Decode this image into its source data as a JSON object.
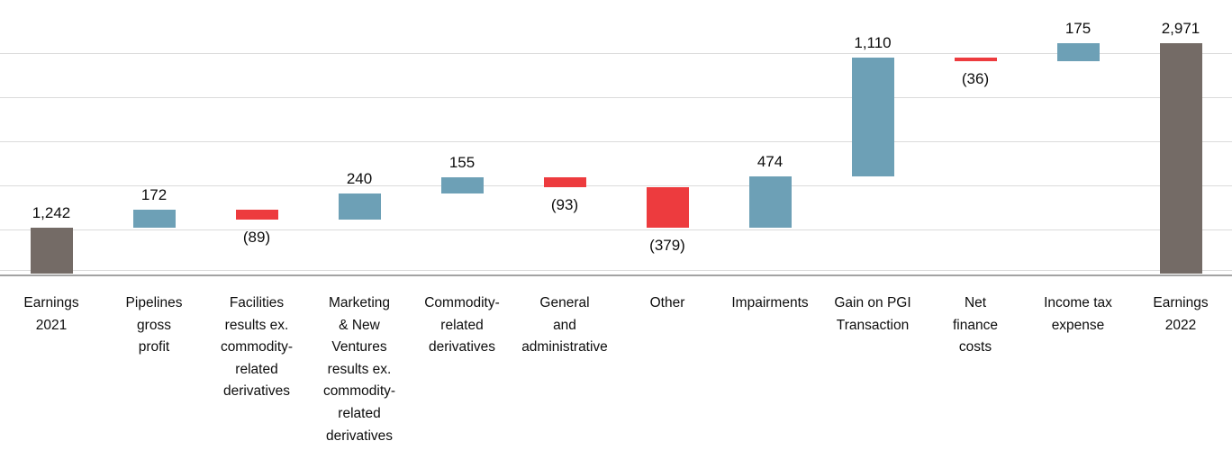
{
  "chart_data": {
    "type": "bar",
    "subtype": "waterfall",
    "title": "",
    "xlabel": "",
    "ylabel": "",
    "start_value": 1242,
    "end_value": 2971,
    "legend": null,
    "grid": true,
    "ylim_approx": [
      810,
      3380
    ],
    "colors": {
      "increase": "#6da0b6",
      "decrease": "#ed3b3e",
      "total": "#746b66",
      "gridline": "#dbdbdb",
      "axis_line": "#a3a3a3",
      "label_text": "#0d0d0d"
    },
    "items": [
      {
        "label": "Earnings 2021",
        "label_lines": [
          "Earnings",
          "2021"
        ],
        "value": 1242,
        "display": "1,242",
        "role": "total"
      },
      {
        "label": "Pipelines gross profit",
        "label_lines": [
          "Pipelines",
          "gross",
          "profit"
        ],
        "value": 172,
        "display": "172",
        "role": "increase"
      },
      {
        "label": "Facilities results ex. commodity-related derivatives",
        "label_lines": [
          "Facilities",
          "results ex.",
          "commodity-",
          "related",
          "derivatives"
        ],
        "value": -89,
        "display": "(89)",
        "role": "decrease"
      },
      {
        "label": "Marketing & New Ventures results ex. commodity-related derivatives",
        "label_lines": [
          "Marketing",
          "& New",
          "Ventures",
          "results ex.",
          "commodity-",
          "related",
          "derivatives"
        ],
        "value": 240,
        "display": "240",
        "role": "increase"
      },
      {
        "label": "Commodity-related derivatives",
        "label_lines": [
          "Commodity-",
          "related",
          "derivatives"
        ],
        "value": 155,
        "display": "155",
        "role": "increase"
      },
      {
        "label": "General and administrative",
        "label_lines": [
          "General",
          "and",
          "administrative"
        ],
        "value": -93,
        "display": "(93)",
        "role": "decrease"
      },
      {
        "label": "Other",
        "label_lines": [
          "Other"
        ],
        "value": -379,
        "display": "(379)",
        "role": "decrease"
      },
      {
        "label": "Impairments",
        "label_lines": [
          "Impairments"
        ],
        "value": 474,
        "display": "474",
        "role": "increase"
      },
      {
        "label": "Gain on PGI Transaction",
        "label_lines": [
          "Gain on PGI",
          "Transaction"
        ],
        "value": 1110,
        "display": "1,110",
        "role": "increase"
      },
      {
        "label": "Net finance costs",
        "label_lines": [
          "Net",
          "finance",
          "costs"
        ],
        "value": -36,
        "display": "(36)",
        "role": "decrease"
      },
      {
        "label": "Income tax expense",
        "label_lines": [
          "Income tax",
          "expense"
        ],
        "value": 175,
        "display": "175",
        "role": "increase"
      },
      {
        "label": "Earnings 2022",
        "label_lines": [
          "Earnings",
          "2022"
        ],
        "value": 2971,
        "display": "2,971",
        "role": "total"
      }
    ]
  }
}
